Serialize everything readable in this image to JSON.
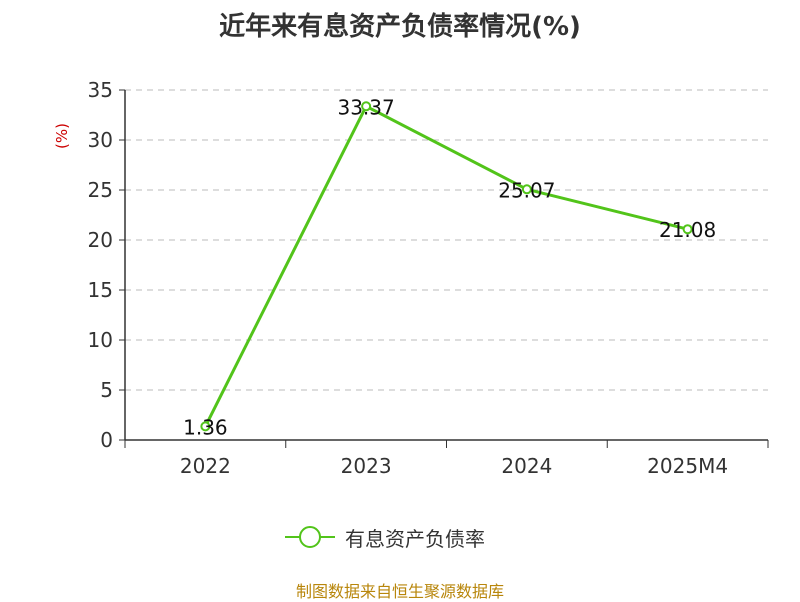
{
  "title": "近年来有息资产负债率情况(%)",
  "y_unit_label": "(%)",
  "source_text": "制图数据来自恒生聚源数据库",
  "colors": {
    "line": "#52c41a",
    "axis": "#333333",
    "grid": "#bbbbbb",
    "source": "#b8860b",
    "unit": "#cc0000"
  },
  "chart_data": {
    "type": "line",
    "categories": [
      "2022",
      "2023",
      "2024",
      "2025M4"
    ],
    "series": [
      {
        "name": "有息资产负债率",
        "values": [
          1.36,
          33.37,
          25.07,
          21.08
        ],
        "labels": [
          "1.36",
          "33.37",
          "25.07",
          "21.08"
        ]
      }
    ],
    "yticks": [
      0,
      5,
      10,
      15,
      20,
      25,
      30,
      35
    ],
    "ylim": [
      0,
      35
    ],
    "grid": true,
    "legend": "bottom"
  }
}
